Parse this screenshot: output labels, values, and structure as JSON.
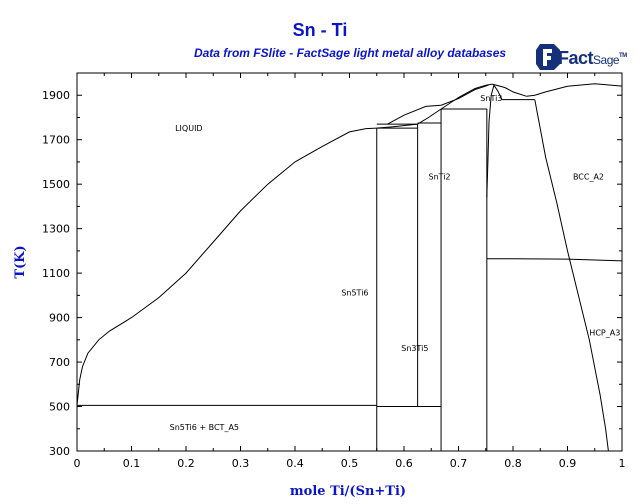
{
  "header": {
    "title": "Sn - Ti",
    "subtitle": "Data from FSlite - FactSage light metal alloy databases",
    "logo": {
      "word": "Fact",
      "word2": "Sage",
      "mark": "TM"
    }
  },
  "chart_data": {
    "type": "phase-diagram",
    "title": "Sn - Ti",
    "subtitle": "Data from FSlite - FactSage light metal alloy databases",
    "xlabel": "mole Ti/(Sn+Ti)",
    "ylabel": "T(K)",
    "xlim": [
      0,
      1
    ],
    "ylim": [
      300,
      2000
    ],
    "xticks": [
      "0",
      "0.1",
      "0.2",
      "0.3",
      "0.4",
      "0.5",
      "0.6",
      "0.7",
      "0.8",
      "0.9",
      "1"
    ],
    "yticks": [
      "300",
      "500",
      "700",
      "900",
      "1100",
      "1300",
      "1500",
      "1700",
      "1900"
    ],
    "grid": false,
    "regions": [
      {
        "label": "LIQUID",
        "x": 0.18,
        "y": 1740
      },
      {
        "label": "Sn5Ti6",
        "x": 0.485,
        "y": 1000
      },
      {
        "label": "Sn3Ti5",
        "x": 0.595,
        "y": 750
      },
      {
        "label": "SnTi2",
        "x": 0.645,
        "y": 1520
      },
      {
        "label": "SnTi3",
        "x": 0.74,
        "y": 1875
      },
      {
        "label": "BCC_A2",
        "x": 0.91,
        "y": 1520
      },
      {
        "label": "HCP_A3",
        "x": 0.94,
        "y": 820
      },
      {
        "label": "Sn5Ti6 + BCT_A5",
        "x": 0.17,
        "y": 395
      }
    ],
    "curves": [
      {
        "name": "liquidus-left",
        "points": [
          [
            0,
            505
          ],
          [
            0.005,
            620
          ],
          [
            0.01,
            680
          ],
          [
            0.02,
            740
          ],
          [
            0.04,
            800
          ],
          [
            0.06,
            840
          ],
          [
            0.1,
            900
          ],
          [
            0.15,
            990
          ],
          [
            0.2,
            1100
          ],
          [
            0.25,
            1240
          ],
          [
            0.3,
            1380
          ],
          [
            0.35,
            1500
          ],
          [
            0.4,
            1600
          ],
          [
            0.45,
            1670
          ],
          [
            0.5,
            1735
          ],
          [
            0.53,
            1750
          ],
          [
            0.55,
            1752
          ]
        ]
      },
      {
        "name": "liquidus-peritectic-1",
        "points": [
          [
            0.55,
            1752
          ],
          [
            0.58,
            1758
          ],
          [
            0.625,
            1770
          ]
        ]
      },
      {
        "name": "liquidus-peritectic-2",
        "points": [
          [
            0.625,
            1770
          ],
          [
            0.645,
            1800
          ],
          [
            0.668,
            1838
          ]
        ]
      },
      {
        "name": "liquidus-to-SnTi3",
        "points": [
          [
            0.668,
            1838
          ],
          [
            0.7,
            1890
          ],
          [
            0.73,
            1930
          ],
          [
            0.75,
            1945
          ],
          [
            0.762,
            1950
          ]
        ]
      },
      {
        "name": "liquidus-SnTi3-right",
        "points": [
          [
            0.762,
            1950
          ],
          [
            0.785,
            1935
          ],
          [
            0.8,
            1915
          ],
          [
            0.825,
            1895
          ]
        ]
      },
      {
        "name": "SnTi3-to-BCC",
        "points": [
          [
            0.825,
            1895
          ],
          [
            0.84,
            1900
          ],
          [
            0.86,
            1915
          ],
          [
            0.9,
            1940
          ],
          [
            0.95,
            1952
          ],
          [
            1,
            1941
          ]
        ]
      },
      {
        "name": "SnTi3-solvus-left",
        "points": [
          [
            0.752,
            1440
          ],
          [
            0.754,
            1600
          ],
          [
            0.756,
            1780
          ],
          [
            0.76,
            1900
          ],
          [
            0.765,
            1945
          ],
          [
            0.772,
            1920
          ],
          [
            0.78,
            1880
          ]
        ]
      },
      {
        "name": "liquid-solidus-upper",
        "points": [
          [
            0.57,
            1770
          ],
          [
            0.6,
            1810
          ],
          [
            0.64,
            1850
          ],
          [
            0.668,
            1855
          ],
          [
            0.7,
            1885
          ],
          [
            0.73,
            1925
          ],
          [
            0.755,
            1945
          ]
        ]
      },
      {
        "name": "BCC-boundary",
        "points": [
          [
            0.84,
            1880
          ],
          [
            0.86,
            1620
          ],
          [
            0.88,
            1420
          ],
          [
            0.9,
            1200
          ],
          [
            0.92,
            1000
          ],
          [
            0.94,
            800
          ],
          [
            0.96,
            550
          ],
          [
            0.97,
            400
          ],
          [
            0.975,
            300
          ]
        ]
      },
      {
        "name": "eutectoid-line",
        "points": [
          [
            0.752,
            1165
          ],
          [
            0.8,
            1165
          ],
          [
            0.9,
            1163
          ],
          [
            1,
            1155
          ]
        ]
      }
    ],
    "lines": [
      {
        "name": "eutectic-500",
        "x": [
          0,
          0.55
        ],
        "y": 505
      },
      {
        "name": "Sn5Ti6-compound",
        "x": 0.55,
        "y": [
          300,
          1752
        ]
      },
      {
        "name": "peritectic-1752",
        "x": [
          0.55,
          0.625
        ],
        "y": 1752
      },
      {
        "name": "peritectic-1770",
        "x": [
          0.55,
          0.625
        ],
        "y": 1770
      },
      {
        "name": "Sn3Ti5-left",
        "x": 0.625,
        "y": [
          500,
          1770
        ]
      },
      {
        "name": "Sn5Ti6-Sn3Ti5-500",
        "x": [
          0.55,
          0.668
        ],
        "y": 500
      },
      {
        "name": "peritectic-1775",
        "x": [
          0.625,
          0.668
        ],
        "y": 1775
      },
      {
        "name": "SnTi2-compound",
        "x": 0.668,
        "y": [
          300,
          1838
        ]
      },
      {
        "name": "peritectic-1838",
        "x": [
          0.668,
          0.752
        ],
        "y": 1838
      },
      {
        "name": "SnTi3-left",
        "x": 0.752,
        "y": [
          300,
          1838
        ]
      },
      {
        "name": "eutectic-1880",
        "x": [
          0.78,
          0.84
        ],
        "y": 1880
      }
    ]
  }
}
